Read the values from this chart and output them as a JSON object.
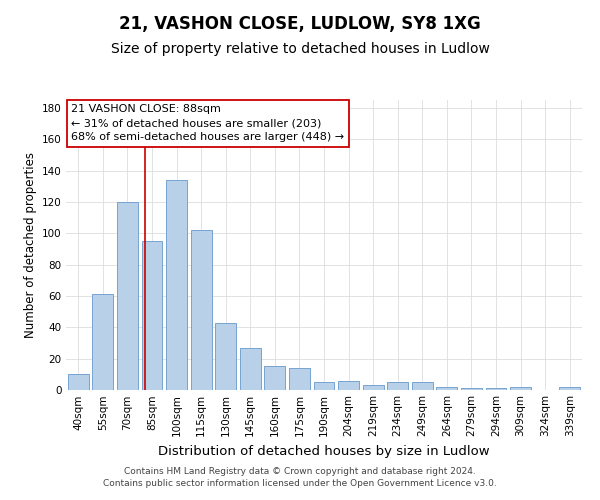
{
  "title": "21, VASHON CLOSE, LUDLOW, SY8 1XG",
  "subtitle": "Size of property relative to detached houses in Ludlow",
  "xlabel": "Distribution of detached houses by size in Ludlow",
  "ylabel": "Number of detached properties",
  "categories": [
    "40sqm",
    "55sqm",
    "70sqm",
    "85sqm",
    "100sqm",
    "115sqm",
    "130sqm",
    "145sqm",
    "160sqm",
    "175sqm",
    "190sqm",
    "204sqm",
    "219sqm",
    "234sqm",
    "249sqm",
    "264sqm",
    "279sqm",
    "294sqm",
    "309sqm",
    "324sqm",
    "339sqm"
  ],
  "values": [
    10,
    61,
    120,
    95,
    134,
    102,
    43,
    27,
    15,
    14,
    5,
    6,
    3,
    5,
    5,
    2,
    1,
    1,
    2,
    0,
    2
  ],
  "bar_color": "#b8d0e8",
  "bar_edge_color": "#6699cc",
  "grid_color": "#dddddd",
  "background_color": "#ffffff",
  "annotation_line1": "21 VASHON CLOSE: 88sqm",
  "annotation_line2": "← 31% of detached houses are smaller (203)",
  "annotation_line3": "68% of semi-detached houses are larger (448) →",
  "annotation_box_color": "#ffffff",
  "annotation_box_edge_color": "#cc0000",
  "vline_color": "#cc0000",
  "ylim": [
    0,
    185
  ],
  "yticks": [
    0,
    20,
    40,
    60,
    80,
    100,
    120,
    140,
    160,
    180
  ],
  "footer_text": "Contains HM Land Registry data © Crown copyright and database right 2024.\nContains public sector information licensed under the Open Government Licence v3.0.",
  "title_fontsize": 12,
  "subtitle_fontsize": 10,
  "xlabel_fontsize": 9.5,
  "ylabel_fontsize": 8.5,
  "tick_fontsize": 7.5,
  "annotation_fontsize": 8,
  "footer_fontsize": 6.5
}
